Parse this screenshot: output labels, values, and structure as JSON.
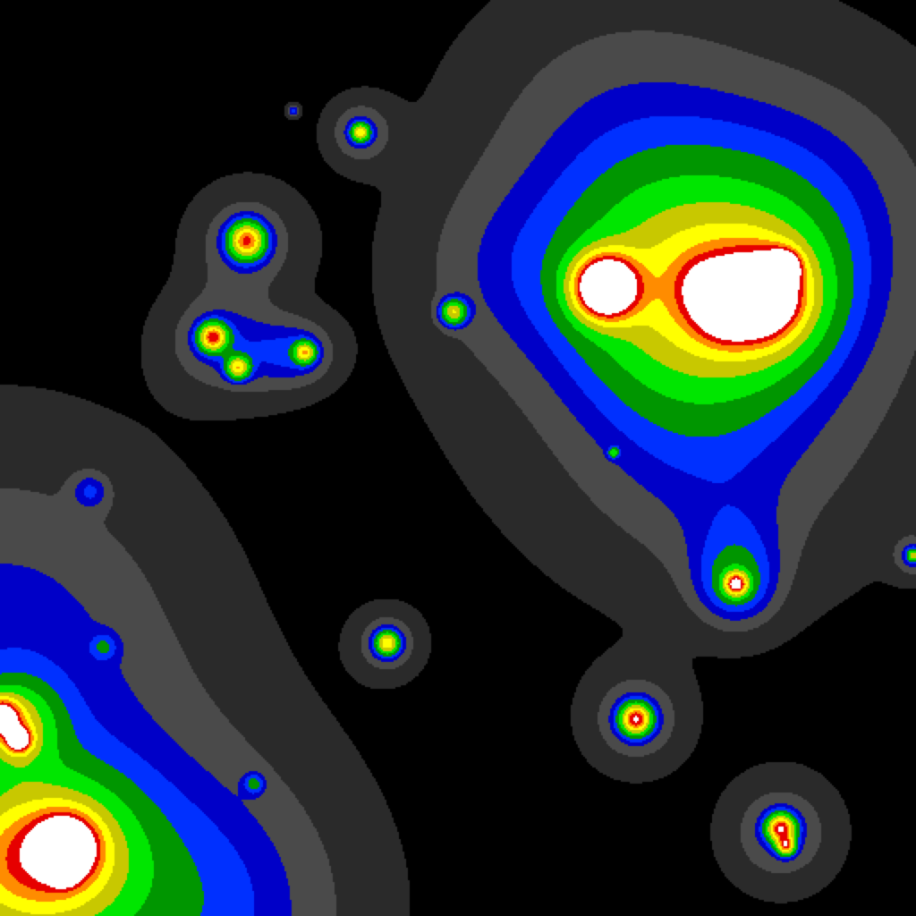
{
  "figure": {
    "type": "heatmap",
    "colormap": [
      "#000000",
      "#2a2a2a",
      "#4a4a4a",
      "#0000c8",
      "#0030ff",
      "#009600",
      "#00e600",
      "#c8c800",
      "#ffff00",
      "#ff8c00",
      "#e60000",
      "#ffffff"
    ]
  }
}
